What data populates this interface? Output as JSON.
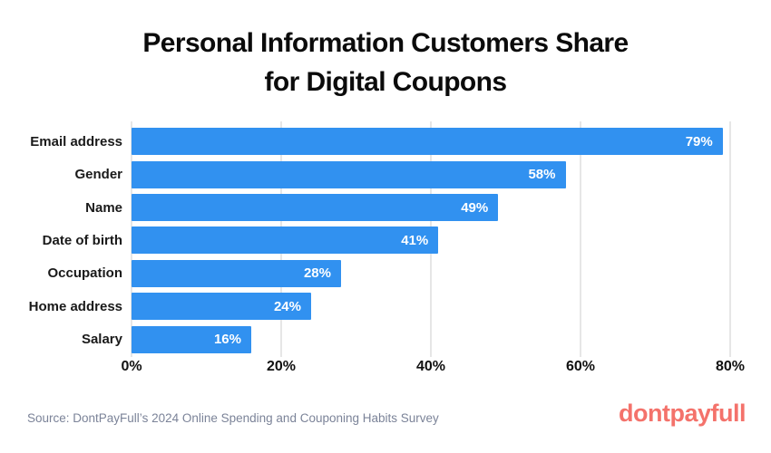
{
  "title": {
    "line1": "Personal Information Customers Share",
    "line2": "for Digital Coupons"
  },
  "chart_data": {
    "type": "bar",
    "orientation": "horizontal",
    "title": "Personal Information Customers Share for Digital Coupons",
    "categories": [
      "Email address",
      "Gender",
      "Name",
      "Date of birth",
      "Occupation",
      "Home address",
      "Salary"
    ],
    "values": [
      79,
      58,
      49,
      41,
      28,
      24,
      16
    ],
    "value_labels": [
      "79%",
      "58%",
      "49%",
      "41%",
      "28%",
      "24%",
      "16%"
    ],
    "x_ticks": [
      "0%",
      "20%",
      "40%",
      "60%",
      "80%"
    ],
    "x_tick_values": [
      0,
      20,
      40,
      60,
      80
    ],
    "xlim": [
      0,
      80
    ],
    "grid": true,
    "bar_color": "#3191F0",
    "gridline_color": "#cccccc",
    "value_label_color": "#ffffff"
  },
  "footer": {
    "source": "Source: DontPayFull’s 2024 Online Spending and Couponing Habits Survey",
    "logo": "dontpayfull",
    "logo_color": "#F4726B"
  }
}
